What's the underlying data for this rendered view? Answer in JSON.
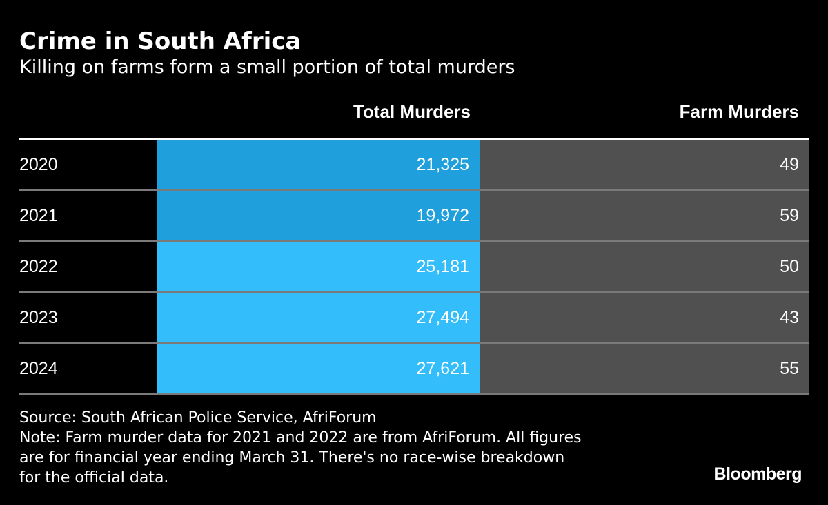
{
  "title": "Crime in South Africa",
  "subtitle": "Killing on farms form a small portion of total murders",
  "chart_data": {
    "type": "table",
    "columns": [
      "Total Murders",
      "Farm Murders"
    ],
    "rows": [
      {
        "year": "2020",
        "total": "21,325",
        "farm": "49",
        "total_value": 21325,
        "farm_value": 49
      },
      {
        "year": "2021",
        "total": "19,972",
        "farm": "59",
        "total_value": 19972,
        "farm_value": 59
      },
      {
        "year": "2022",
        "total": "25,181",
        "farm": "50",
        "total_value": 25181,
        "farm_value": 50
      },
      {
        "year": "2023",
        "total": "27,494",
        "farm": "43",
        "total_value": 27494,
        "farm_value": 43
      },
      {
        "year": "2024",
        "total": "27,621",
        "farm": "55",
        "total_value": 27621,
        "farm_value": 55
      }
    ],
    "colors": {
      "total_low": "#1f9fdb",
      "total_high": "#33bdfb",
      "farm": "#505050",
      "background": "#000000"
    }
  },
  "footer": {
    "source": "Source: South African Police Service, AfriForum",
    "note_lines": [
      "Note: Farm murder data for 2021 and 2022 are from AfriForum. All figures",
      "are for financial year ending March 31. There's no race-wise breakdown",
      "for the official data."
    ],
    "brand": "Bloomberg"
  }
}
